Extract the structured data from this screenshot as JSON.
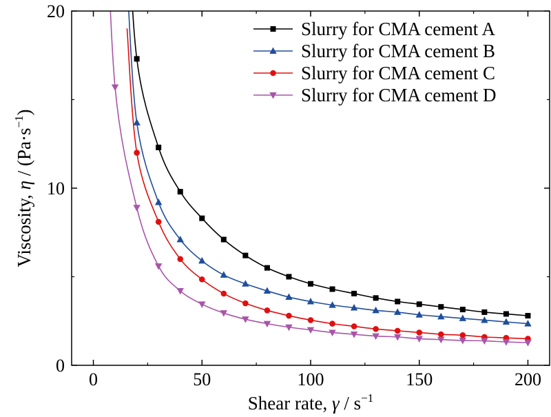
{
  "chart_data": {
    "type": "line",
    "title": "",
    "xlabel": {
      "prefix": "Shear rate, ",
      "symbol": "γ",
      "unit": " / s",
      "sup": "−1"
    },
    "ylabel": {
      "prefix": "Viscosity, ",
      "symbol": "η",
      "unit": " / (Pa·s",
      "sup": "−1",
      "suffix": ")"
    },
    "xlim": [
      -10,
      210
    ],
    "ylim": [
      0,
      20
    ],
    "xticks": [
      0,
      50,
      100,
      150,
      200
    ],
    "yticks": [
      0,
      10,
      20
    ],
    "xtick_labels": [
      "0",
      "50",
      "100",
      "150",
      "200"
    ],
    "ytick_labels": [
      "0",
      "10",
      "20"
    ],
    "legend_position": "top-right",
    "series": [
      {
        "name": "Slurry for CMA cement A",
        "color": "#000000",
        "marker": "square",
        "x": [
          20,
          30,
          40,
          50,
          60,
          70,
          80,
          90,
          100,
          110,
          120,
          130,
          140,
          150,
          160,
          170,
          180,
          190,
          200
        ],
        "y": [
          17.3,
          12.3,
          9.8,
          8.3,
          7.1,
          6.2,
          5.5,
          5.0,
          4.6,
          4.3,
          4.05,
          3.8,
          3.6,
          3.45,
          3.3,
          3.15,
          3.0,
          2.9,
          2.8
        ]
      },
      {
        "name": "Slurry for CMA cement B",
        "color": "#1f4e9c",
        "marker": "triangle-up",
        "x": [
          20,
          30,
          40,
          50,
          60,
          70,
          80,
          90,
          100,
          110,
          120,
          130,
          140,
          150,
          160,
          170,
          180,
          190,
          200
        ],
        "y": [
          13.7,
          9.2,
          7.1,
          5.9,
          5.1,
          4.6,
          4.2,
          3.85,
          3.6,
          3.4,
          3.25,
          3.1,
          3.0,
          2.85,
          2.75,
          2.65,
          2.55,
          2.45,
          2.35
        ]
      },
      {
        "name": "Slurry for CMA cement C",
        "color": "#e01010",
        "marker": "circle",
        "x": [
          20,
          30,
          40,
          50,
          60,
          70,
          80,
          90,
          100,
          110,
          120,
          130,
          140,
          150,
          160,
          170,
          180,
          190,
          200
        ],
        "y": [
          12.0,
          8.1,
          6.0,
          4.85,
          4.05,
          3.5,
          3.1,
          2.8,
          2.55,
          2.35,
          2.2,
          2.05,
          1.95,
          1.85,
          1.75,
          1.7,
          1.6,
          1.55,
          1.5
        ]
      },
      {
        "name": "Slurry for CMA cement D",
        "color": "#a855a8",
        "marker": "triangle-down",
        "x": [
          10,
          20,
          30,
          40,
          50,
          60,
          70,
          80,
          90,
          100,
          110,
          120,
          130,
          140,
          150,
          160,
          170,
          180,
          190,
          200
        ],
        "y": [
          15.7,
          8.9,
          5.6,
          4.2,
          3.45,
          2.95,
          2.6,
          2.35,
          2.15,
          2.0,
          1.85,
          1.75,
          1.65,
          1.6,
          1.5,
          1.45,
          1.4,
          1.38,
          1.32,
          1.28
        ]
      }
    ]
  }
}
